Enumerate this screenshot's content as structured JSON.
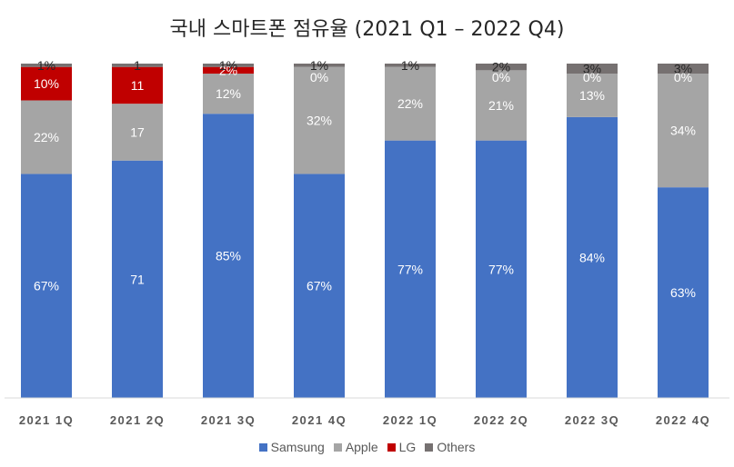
{
  "chart_data": {
    "type": "bar",
    "stacked": true,
    "title": "국내 스마트폰 점유율 (2021 Q1 – 2022 Q4)",
    "xlabel": "",
    "ylabel": "",
    "ylim": [
      0,
      100
    ],
    "grid": false,
    "legend_position": "bottom",
    "categories": [
      "2021 1Q",
      "2021 2Q",
      "2021 3Q",
      "2021 4Q",
      "2022 1Q",
      "2022 2Q",
      "2022 3Q",
      "2022 4Q"
    ],
    "series": [
      {
        "name": "Samsung",
        "color": "#4472c4",
        "values": [
          67,
          71,
          85,
          67,
          77,
          77,
          84,
          63
        ],
        "labels": [
          "67%",
          "71",
          "85%",
          "67%",
          "77%",
          "77%",
          "84%",
          "63%"
        ],
        "label_color": "#ffffff"
      },
      {
        "name": "Apple",
        "color": "#a5a5a5",
        "values": [
          22,
          17,
          12,
          32,
          22,
          21,
          13,
          34
        ],
        "labels": [
          "22%",
          "17",
          "12%",
          "32%",
          "22%",
          "21%",
          "13%",
          "34%"
        ],
        "label_color": "#ffffff"
      },
      {
        "name": "LG",
        "color": "#c00000",
        "values": [
          10,
          11,
          2,
          0,
          0,
          0,
          0,
          0
        ],
        "labels": [
          "10%",
          "11",
          "2%",
          "",
          "",
          "",
          "",
          ""
        ],
        "label_color": "#ffffff"
      },
      {
        "name": "Others",
        "color": "#767171",
        "values": [
          1,
          1,
          1,
          1,
          1,
          2,
          3,
          3
        ],
        "labels": [
          "1%",
          "1",
          "1%",
          "1%",
          "1%",
          "2%",
          "3%",
          "3%"
        ],
        "label_color": "#262626"
      }
    ],
    "zero_labels": [
      "",
      "",
      "",
      "0%",
      "",
      "0%",
      "0%",
      "0%"
    ]
  }
}
